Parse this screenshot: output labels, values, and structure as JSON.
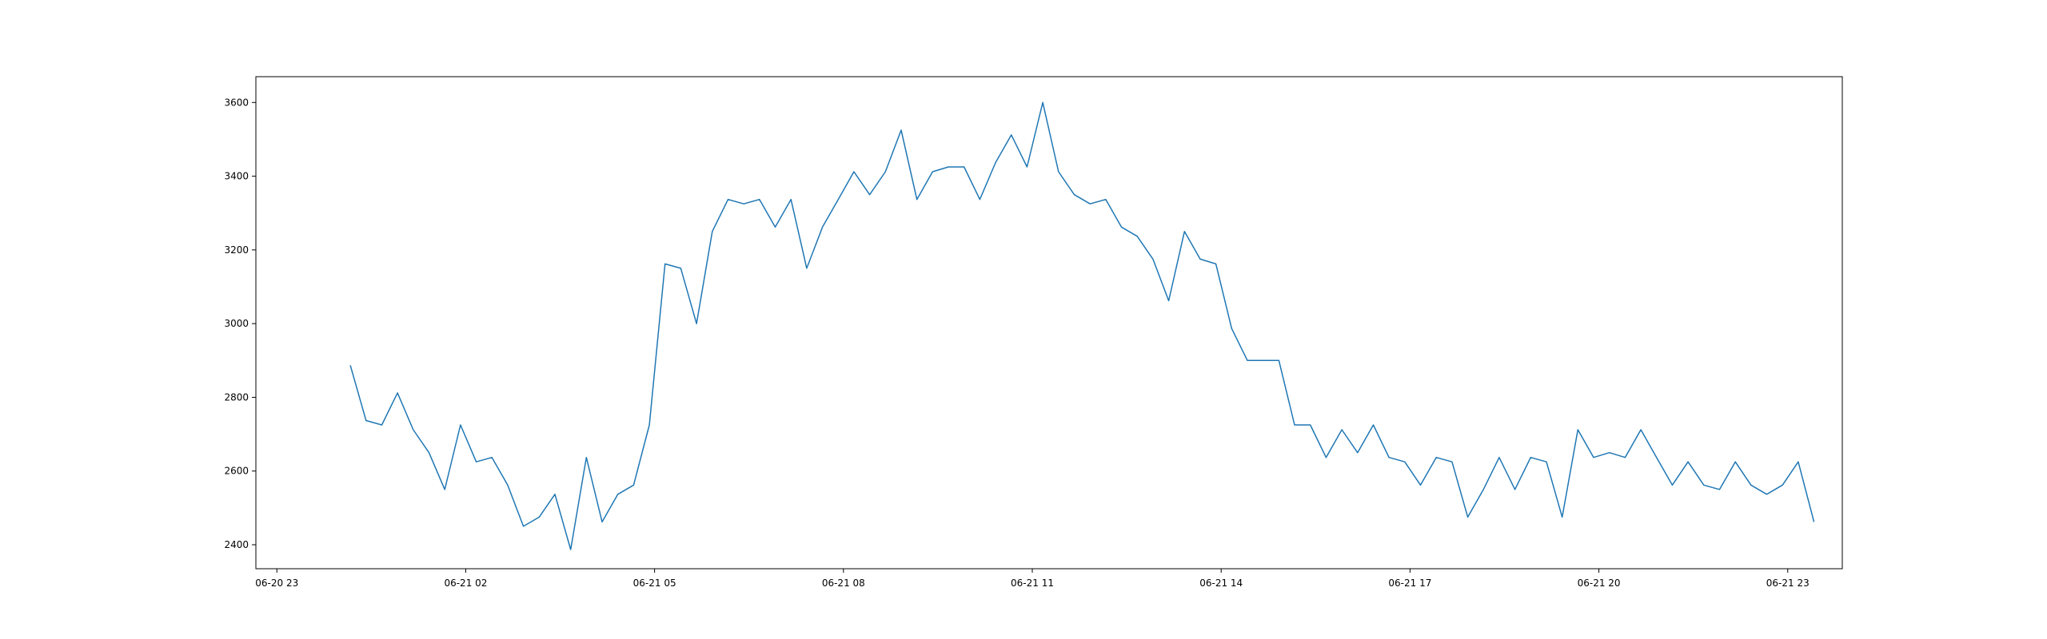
{
  "chart_data": {
    "type": "line",
    "title": "",
    "xlabel": "",
    "ylabel": "",
    "grid": false,
    "legend": "none",
    "color": "#1f77b4",
    "xlim": [
      "2024-06-20 22:40",
      "2024-06-21 23:52"
    ],
    "ylim": [
      2335,
      3670
    ],
    "x_ticks": [
      {
        "t": "2024-06-20 23:00",
        "label": "06-20 23"
      },
      {
        "t": "2024-06-21 02:00",
        "label": "06-21 02"
      },
      {
        "t": "2024-06-21 05:00",
        "label": "06-21 05"
      },
      {
        "t": "2024-06-21 08:00",
        "label": "06-21 08"
      },
      {
        "t": "2024-06-21 11:00",
        "label": "06-21 11"
      },
      {
        "t": "2024-06-21 14:00",
        "label": "06-21 14"
      },
      {
        "t": "2024-06-21 17:00",
        "label": "06-21 17"
      },
      {
        "t": "2024-06-21 20:00",
        "label": "06-21 20"
      },
      {
        "t": "2024-06-21 23:00",
        "label": "06-21 23"
      }
    ],
    "y_ticks": [
      2400,
      2600,
      2800,
      3000,
      3200,
      3400,
      3600
    ],
    "series": [
      {
        "x": [
          "2024-06-21 00:10",
          "2024-06-21 00:25",
          "2024-06-21 00:40",
          "2024-06-21 00:55",
          "2024-06-21 01:10",
          "2024-06-21 01:25",
          "2024-06-21 01:40",
          "2024-06-21 01:55",
          "2024-06-21 02:10",
          "2024-06-21 02:25",
          "2024-06-21 02:40",
          "2024-06-21 02:55",
          "2024-06-21 03:10",
          "2024-06-21 03:25",
          "2024-06-21 03:40",
          "2024-06-21 03:55",
          "2024-06-21 04:10",
          "2024-06-21 04:25",
          "2024-06-21 04:40",
          "2024-06-21 04:55",
          "2024-06-21 05:10",
          "2024-06-21 05:25",
          "2024-06-21 05:40",
          "2024-06-21 05:55",
          "2024-06-21 06:10",
          "2024-06-21 06:25",
          "2024-06-21 06:40",
          "2024-06-21 06:55",
          "2024-06-21 07:10",
          "2024-06-21 07:25",
          "2024-06-21 07:40",
          "2024-06-21 07:55",
          "2024-06-21 08:10",
          "2024-06-21 08:25",
          "2024-06-21 08:40",
          "2024-06-21 08:55",
          "2024-06-21 09:10",
          "2024-06-21 09:25",
          "2024-06-21 09:40",
          "2024-06-21 09:55",
          "2024-06-21 10:10",
          "2024-06-21 10:25",
          "2024-06-21 10:40",
          "2024-06-21 10:55",
          "2024-06-21 11:10",
          "2024-06-21 11:25",
          "2024-06-21 11:40",
          "2024-06-21 11:55",
          "2024-06-21 12:10",
          "2024-06-21 12:25",
          "2024-06-21 12:40",
          "2024-06-21 12:55",
          "2024-06-21 13:10",
          "2024-06-21 13:25",
          "2024-06-21 13:40",
          "2024-06-21 13:55",
          "2024-06-21 14:10",
          "2024-06-21 14:25",
          "2024-06-21 14:40",
          "2024-06-21 14:55",
          "2024-06-21 15:10",
          "2024-06-21 15:25",
          "2024-06-21 15:40",
          "2024-06-21 15:55",
          "2024-06-21 16:10",
          "2024-06-21 16:25",
          "2024-06-21 16:40",
          "2024-06-21 16:55",
          "2024-06-21 17:10",
          "2024-06-21 17:25",
          "2024-06-21 17:40",
          "2024-06-21 17:55",
          "2024-06-21 18:10",
          "2024-06-21 18:25",
          "2024-06-21 18:40",
          "2024-06-21 18:55",
          "2024-06-21 19:10",
          "2024-06-21 19:25",
          "2024-06-21 19:40",
          "2024-06-21 19:55",
          "2024-06-21 20:10",
          "2024-06-21 20:25",
          "2024-06-21 20:40",
          "2024-06-21 20:55",
          "2024-06-21 21:10",
          "2024-06-21 21:25",
          "2024-06-21 21:40",
          "2024-06-21 21:55",
          "2024-06-21 22:10",
          "2024-06-21 22:25",
          "2024-06-21 22:40",
          "2024-06-21 22:55",
          "2024-06-21 23:10",
          "2024-06-21 23:25"
        ],
        "y": [
          2887,
          2737,
          2725,
          2812,
          2712,
          2650,
          2550,
          2725,
          2625,
          2637,
          2562,
          2450,
          2475,
          2537,
          2387,
          2637,
          2462,
          2537,
          2562,
          2725,
          3162,
          3150,
          3000,
          3250,
          3337,
          3325,
          3337,
          3262,
          3337,
          3150,
          3262,
          3337,
          3412,
          3350,
          3412,
          3525,
          3337,
          3412,
          3425,
          3425,
          3337,
          3437,
          3512,
          3425,
          3600,
          3412,
          3350,
          3325,
          3337,
          3262,
          3237,
          3175,
          3062,
          3250,
          3175,
          3162,
          2987,
          2900,
          2900,
          2900,
          2725,
          2725,
          2637,
          2712,
          2650,
          2725,
          2637,
          2625,
          2562,
          2637,
          2625,
          2475,
          2550,
          2637,
          2550,
          2637,
          2625,
          2475,
          2712,
          2637,
          2650,
          2637,
          2712,
          2637,
          2562,
          2625,
          2562,
          2550,
          2625,
          2562,
          2537,
          2562,
          2625,
          2462
        ]
      }
    ]
  }
}
